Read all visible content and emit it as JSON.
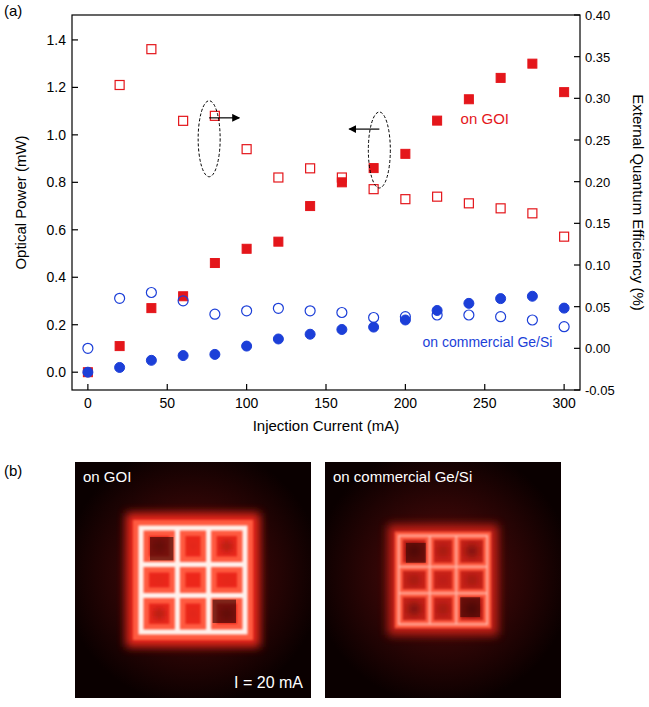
{
  "chart_data": {
    "type": "scatter",
    "panel_label": "(a)",
    "x_label": "Injection Current (mA)",
    "y_label": "Optical Power (mW)",
    "y2_label": "External Quantum Efficiency (%)",
    "x": [
      0,
      20,
      40,
      60,
      80,
      100,
      120,
      140,
      160,
      180,
      200,
      220,
      240,
      260,
      280,
      300
    ],
    "series": [
      {
        "name": "on GOI",
        "color": "#e4161b",
        "marker": "square",
        "values": [
          0.0,
          0.11,
          0.27,
          0.32,
          0.46,
          0.52,
          0.55,
          0.7,
          0.8,
          0.86,
          0.92,
          1.06,
          1.15,
          1.24,
          1.3,
          1.18
        ]
      },
      {
        "name": "on commercial Ge/Si",
        "color": "#1c3fd8",
        "marker": "circle",
        "values": [
          0.0,
          0.02,
          0.05,
          0.07,
          0.075,
          0.11,
          0.14,
          0.16,
          0.18,
          0.19,
          0.22,
          0.26,
          0.29,
          0.31,
          0.32,
          0.27
        ]
      },
      {
        "color": "#e4161b",
        "marker": "square-open",
        "axis": "y2",
        "values": [
          null,
          0.316,
          0.359,
          0.273,
          0.279,
          0.239,
          0.205,
          0.216,
          0.205,
          0.191,
          0.179,
          0.182,
          0.174,
          0.168,
          0.162,
          0.134
        ]
      },
      {
        "color": "#1c3fd8",
        "marker": "circle-open",
        "axis": "y2",
        "values": [
          0.0,
          0.06,
          0.067,
          0.057,
          0.041,
          0.045,
          0.048,
          0.045,
          0.043,
          0.037,
          0.038,
          0.04,
          0.04,
          0.038,
          0.034,
          0.026
        ]
      }
    ],
    "xlim": [
      -10,
      310
    ],
    "xticks": [
      0,
      50,
      100,
      150,
      200,
      250,
      300
    ],
    "ylim": [
      -0.075,
      1.505
    ],
    "yticks": [
      {
        "value": 0,
        "label": "0.0"
      },
      0.2,
      0.4,
      0.6,
      0.8,
      {
        "value": 1,
        "label": "1.0"
      },
      1.2,
      1.4
    ],
    "y2lim": [
      -0.05,
      0.4
    ],
    "y2ticks": [
      -0.05,
      {
        "value": 0,
        "label": "0.00"
      },
      0.05,
      {
        "value": 0.1,
        "label": "0.10"
      },
      0.15,
      {
        "value": 0.2,
        "label": "0.20"
      },
      0.25,
      {
        "value": 0.3,
        "label": "0.30"
      },
      0.35,
      {
        "value": 0.4,
        "label": "0.40"
      }
    ],
    "grid": false
  },
  "panel_b": {
    "panel_label": "(b)",
    "images": [
      {
        "title": "on GOI",
        "note": "I = 20 mA"
      },
      {
        "title": "on commercial Ge/Si"
      }
    ]
  }
}
